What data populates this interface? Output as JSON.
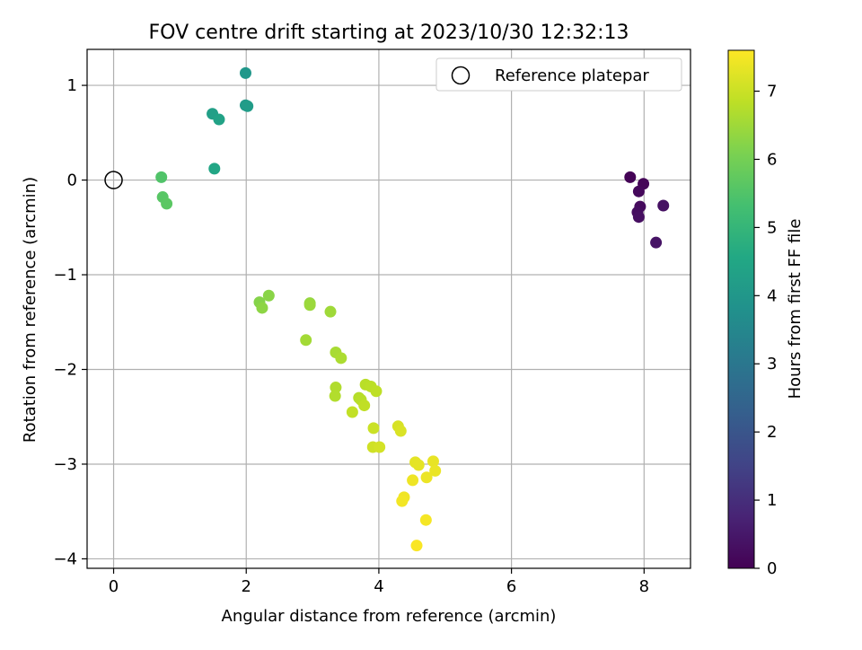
{
  "chart_data": {
    "type": "scatter",
    "title": "FOV centre drift starting at 2023/10/30 12:32:13",
    "xlabel": "Angular distance from reference (arcmin)",
    "ylabel": "Rotation from reference (arcmin)",
    "xlim": [
      -0.4,
      8.7
    ],
    "ylim": [
      -4.1,
      1.38
    ],
    "xticks": [
      0,
      2,
      4,
      6,
      8
    ],
    "yticks": [
      1,
      0,
      -1,
      -2,
      -3,
      -4
    ],
    "grid": true,
    "legend": {
      "position": "top-right",
      "entries": [
        "Reference platepar"
      ]
    },
    "reference_point": {
      "x": 0,
      "y": 0
    },
    "colorbar": {
      "label": "Hours from first FF file",
      "min": 0,
      "max": 7.6,
      "ticks": [
        0,
        1,
        2,
        3,
        4,
        5,
        6,
        7
      ],
      "colormap": "viridis"
    },
    "points": [
      {
        "x": 7.79,
        "y": 0.03,
        "hours": 0.05
      },
      {
        "x": 7.99,
        "y": -0.04,
        "hours": 0.1
      },
      {
        "x": 7.92,
        "y": -0.12,
        "hours": 0.15
      },
      {
        "x": 7.94,
        "y": -0.28,
        "hours": 0.2
      },
      {
        "x": 7.9,
        "y": -0.34,
        "hours": 0.25
      },
      {
        "x": 7.92,
        "y": -0.39,
        "hours": 0.3
      },
      {
        "x": 8.29,
        "y": -0.27,
        "hours": 0.35
      },
      {
        "x": 8.18,
        "y": -0.66,
        "hours": 0.4
      },
      {
        "x": 1.99,
        "y": 1.13,
        "hours": 4.0
      },
      {
        "x": 1.99,
        "y": 0.79,
        "hours": 4.1
      },
      {
        "x": 2.02,
        "y": 0.78,
        "hours": 4.15
      },
      {
        "x": 1.49,
        "y": 0.7,
        "hours": 4.25
      },
      {
        "x": 1.59,
        "y": 0.64,
        "hours": 4.35
      },
      {
        "x": 1.52,
        "y": 0.12,
        "hours": 4.5
      },
      {
        "x": 0.72,
        "y": 0.03,
        "hours": 5.5
      },
      {
        "x": 0.74,
        "y": -0.18,
        "hours": 5.6
      },
      {
        "x": 0.8,
        "y": -0.25,
        "hours": 5.65
      },
      {
        "x": 2.2,
        "y": -1.29,
        "hours": 6.2
      },
      {
        "x": 2.34,
        "y": -1.22,
        "hours": 6.25
      },
      {
        "x": 2.24,
        "y": -1.35,
        "hours": 6.3
      },
      {
        "x": 2.96,
        "y": -1.3,
        "hours": 6.4
      },
      {
        "x": 2.96,
        "y": -1.32,
        "hours": 6.45
      },
      {
        "x": 3.27,
        "y": -1.39,
        "hours": 6.5
      },
      {
        "x": 2.9,
        "y": -1.69,
        "hours": 6.55
      },
      {
        "x": 3.35,
        "y": -1.82,
        "hours": 6.6
      },
      {
        "x": 3.43,
        "y": -1.88,
        "hours": 6.65
      },
      {
        "x": 3.35,
        "y": -2.19,
        "hours": 6.7
      },
      {
        "x": 3.34,
        "y": -2.28,
        "hours": 6.72
      },
      {
        "x": 3.7,
        "y": -2.3,
        "hours": 6.75
      },
      {
        "x": 3.73,
        "y": -2.32,
        "hours": 6.78
      },
      {
        "x": 3.8,
        "y": -2.16,
        "hours": 6.8
      },
      {
        "x": 3.88,
        "y": -2.18,
        "hours": 6.82
      },
      {
        "x": 3.96,
        "y": -2.23,
        "hours": 6.85
      },
      {
        "x": 3.78,
        "y": -2.38,
        "hours": 6.88
      },
      {
        "x": 3.6,
        "y": -2.45,
        "hours": 6.9
      },
      {
        "x": 3.92,
        "y": -2.62,
        "hours": 7.0
      },
      {
        "x": 3.91,
        "y": -2.82,
        "hours": 7.05
      },
      {
        "x": 4.01,
        "y": -2.82,
        "hours": 7.1
      },
      {
        "x": 4.29,
        "y": -2.6,
        "hours": 7.15
      },
      {
        "x": 4.33,
        "y": -2.65,
        "hours": 7.18
      },
      {
        "x": 4.55,
        "y": -2.98,
        "hours": 7.3
      },
      {
        "x": 4.6,
        "y": -3.01,
        "hours": 7.32
      },
      {
        "x": 4.82,
        "y": -2.97,
        "hours": 7.35
      },
      {
        "x": 4.85,
        "y": -3.07,
        "hours": 7.38
      },
      {
        "x": 4.72,
        "y": -3.14,
        "hours": 7.4
      },
      {
        "x": 4.51,
        "y": -3.17,
        "hours": 7.42
      },
      {
        "x": 4.38,
        "y": -3.35,
        "hours": 7.45
      },
      {
        "x": 4.35,
        "y": -3.39,
        "hours": 7.47
      },
      {
        "x": 4.71,
        "y": -3.59,
        "hours": 7.5
      },
      {
        "x": 4.57,
        "y": -3.86,
        "hours": 7.55
      }
    ]
  }
}
